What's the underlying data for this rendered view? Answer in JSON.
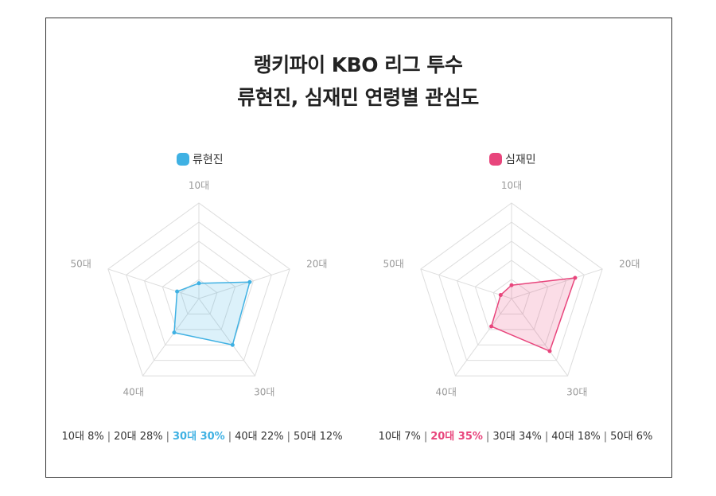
{
  "title": {
    "line1": "랭키파이 KBO 리그 투수",
    "line2": "류현진, 심재민 연령별 관심도"
  },
  "colors": {
    "series1": "#3fb1e3",
    "series2": "#e8457c",
    "grid": "#dddddd",
    "axis_label": "#999999"
  },
  "chart_data": [
    {
      "type": "radar",
      "series_name": "류현진",
      "categories": [
        "10대",
        "20대",
        "30대",
        "40대",
        "50대"
      ],
      "values": [
        8,
        28,
        30,
        22,
        12
      ],
      "highlight_index": 2,
      "unit": "%",
      "grid": true,
      "legend": "top"
    },
    {
      "type": "radar",
      "series_name": "심재민",
      "categories": [
        "10대",
        "20대",
        "30대",
        "40대",
        "50대"
      ],
      "values": [
        7,
        35,
        34,
        18,
        6
      ],
      "highlight_index": 1,
      "unit": "%",
      "grid": true,
      "legend": "top"
    }
  ]
}
